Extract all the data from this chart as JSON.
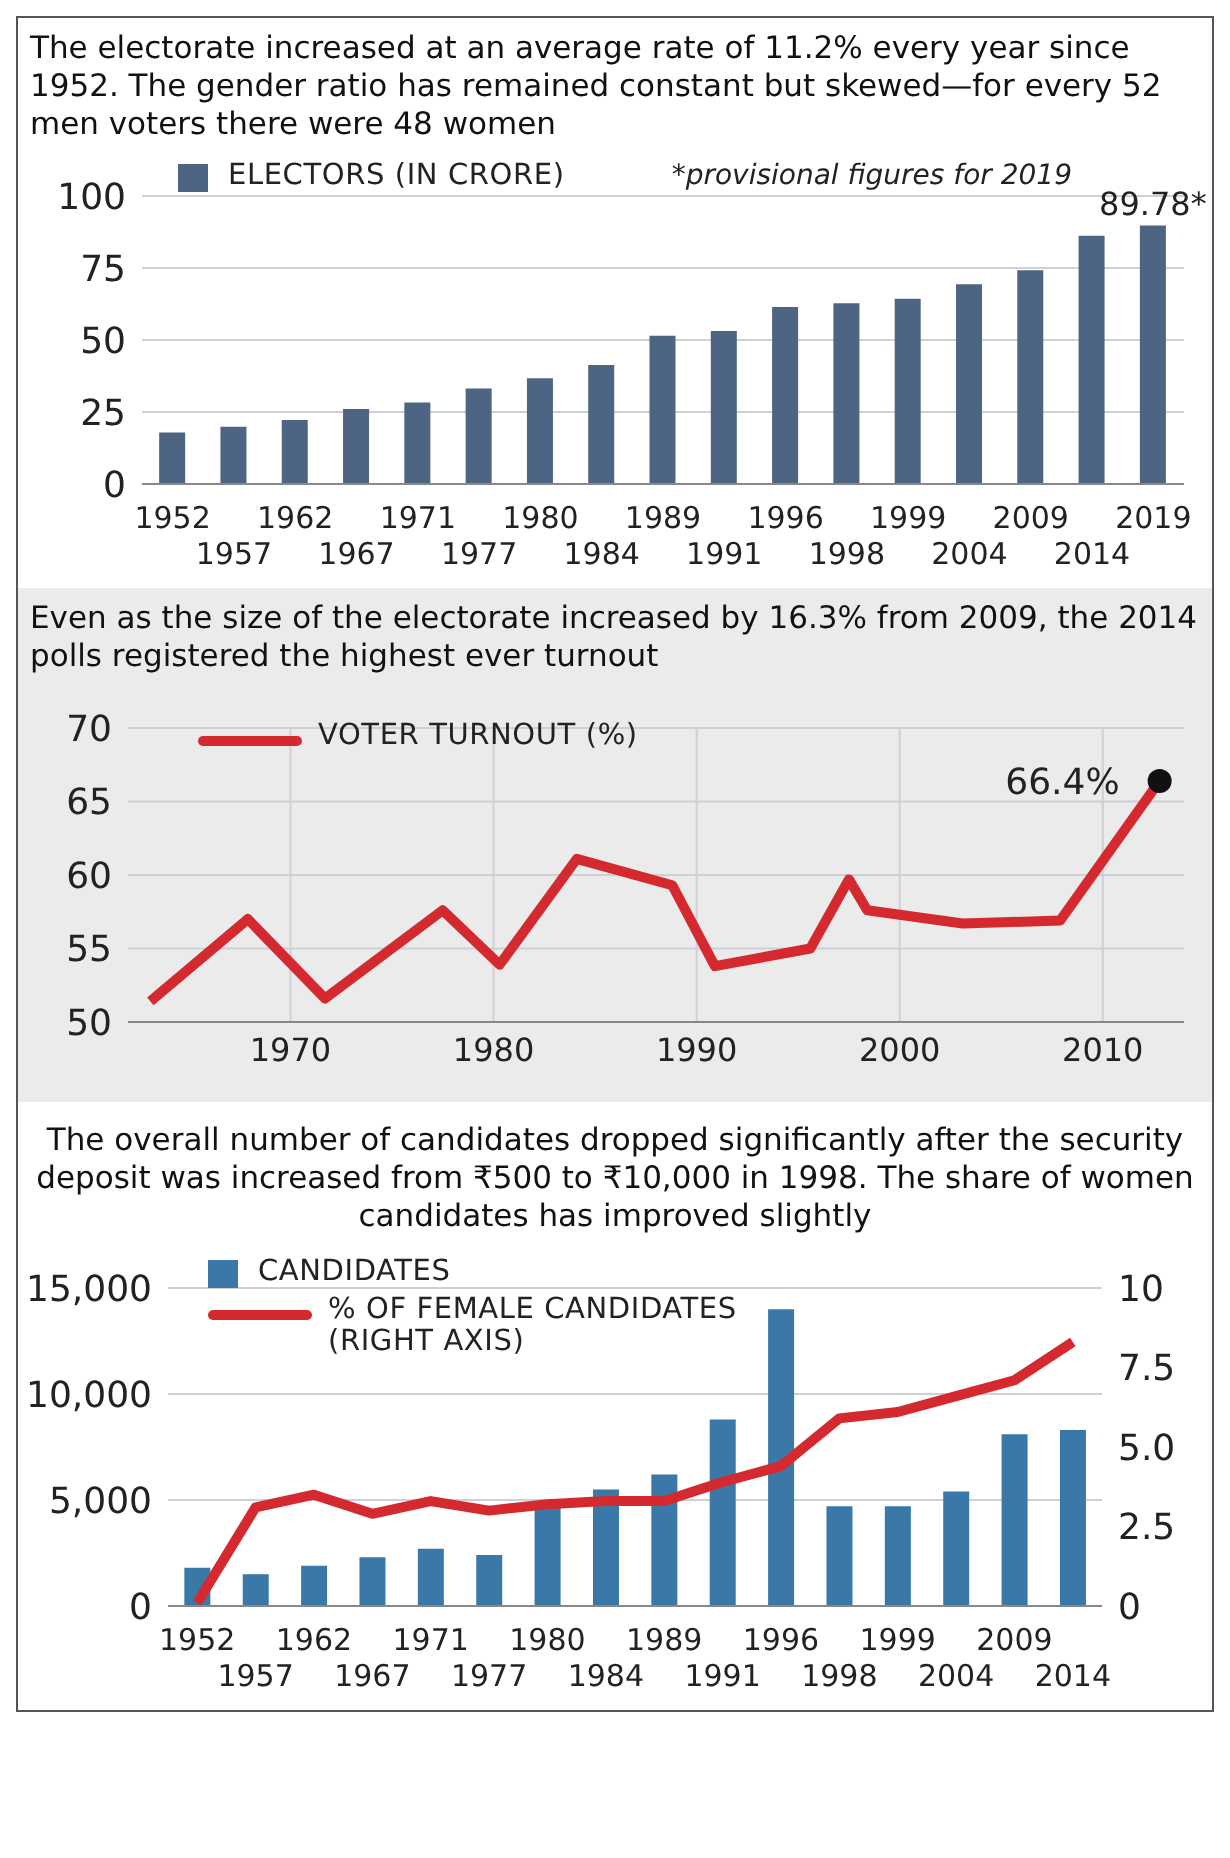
{
  "chart_data": [
    {
      "type": "bar",
      "title": "The electorate increased at an average rate of 11.2% every year since 1952. The gender ratio has remained constant but skewed—for every 52 men voters there were 48 women",
      "categories": [
        "1952",
        "1957",
        "1962",
        "1967",
        "1971",
        "1977",
        "1980",
        "1984",
        "1989",
        "1991",
        "1996",
        "1998",
        "1999",
        "2004",
        "2009",
        "2014",
        "2019"
      ],
      "series": [
        {
          "name": "ELECTORS (IN CRORE)",
          "color": "#4d6483",
          "values": [
            17.9,
            19.9,
            22.2,
            26.0,
            28.3,
            33.2,
            36.7,
            41.3,
            51.5,
            53.1,
            61.5,
            62.8,
            64.3,
            69.4,
            74.2,
            86.2,
            89.78
          ],
          "value_labels": [
            null,
            null,
            null,
            null,
            null,
            null,
            null,
            null,
            null,
            null,
            null,
            null,
            null,
            null,
            null,
            null,
            "89.78*"
          ]
        }
      ],
      "ylim": [
        0,
        100
      ],
      "yticks": [
        0,
        25,
        50,
        75,
        100
      ],
      "grid": "y",
      "legend": "top left",
      "annotations": [
        "*provisional figures for 2019"
      ]
    },
    {
      "type": "line",
      "title": "Even as the size of the electorate increased by 16.3% from 2009, the 2014 polls registered the highest ever turnout",
      "x": [
        1963.1,
        1967.9,
        1971.7,
        1977.5,
        1980.3,
        1984.1,
        1988.8,
        1990.9,
        1995.6,
        1997.5,
        1998.4,
        2003.1,
        2007.9,
        2012.8
      ],
      "series": [
        {
          "name": "VOTER TURNOUT (%)",
          "color": "#d42a2f",
          "values": [
            51.4,
            57.0,
            51.6,
            57.6,
            53.9,
            61.1,
            59.3,
            53.8,
            55.0,
            59.7,
            57.6,
            56.7,
            56.9,
            66.4
          ]
        }
      ],
      "xlim": [
        1962,
        2014
      ],
      "xticks": [
        1970,
        1980,
        1990,
        2000,
        2010
      ],
      "ylim": [
        50,
        70
      ],
      "yticks": [
        50,
        55,
        60,
        65,
        70
      ],
      "grid": true,
      "legend": "top left",
      "annotations": [
        {
          "text": "66.4%",
          "x": 2012.8,
          "y": 66.4
        }
      ]
    },
    {
      "type": "bar",
      "title": "The overall number of candidates dropped significantly after the security deposit was increased from ₹500 to ₹10,000 in 1998. The share of women candidates has improved slightly",
      "categories": [
        "1952",
        "1957",
        "1962",
        "1967",
        "1971",
        "1977",
        "1980",
        "1984",
        "1989",
        "1991",
        "1996",
        "1998",
        "1999",
        "2004",
        "2009",
        "2014"
      ],
      "series": [
        {
          "name": "CANDIDATES",
          "color": "#3a78a8",
          "values": [
            1800,
            1500,
            1900,
            2300,
            2700,
            2400,
            4800,
            5500,
            6200,
            8800,
            14000,
            4700,
            4700,
            5400,
            8100,
            8300
          ]
        },
        {
          "name": "% OF FEMALE CANDIDATES (RIGHT AXIS)",
          "type": "line",
          "axis": "y2",
          "color": "#d42a2f",
          "values": [
            0.1,
            3.1,
            3.5,
            2.9,
            3.3,
            3.0,
            3.2,
            3.3,
            3.3,
            3.9,
            4.4,
            5.9,
            6.1,
            6.6,
            7.1,
            8.3
          ]
        }
      ],
      "ylim": [
        0,
        15000
      ],
      "yticks": [
        0,
        {
          "value": 5000,
          "label": "5,000"
        },
        {
          "value": 10000,
          "label": "10,000"
        },
        {
          "value": 15000,
          "label": "15,000"
        }
      ],
      "y2lim": [
        0,
        10
      ],
      "y2ticks": [
        0,
        2.5,
        {
          "value": 5,
          "label": "5.0"
        },
        7.5,
        10
      ],
      "grid": "y",
      "legend": "top left"
    }
  ]
}
